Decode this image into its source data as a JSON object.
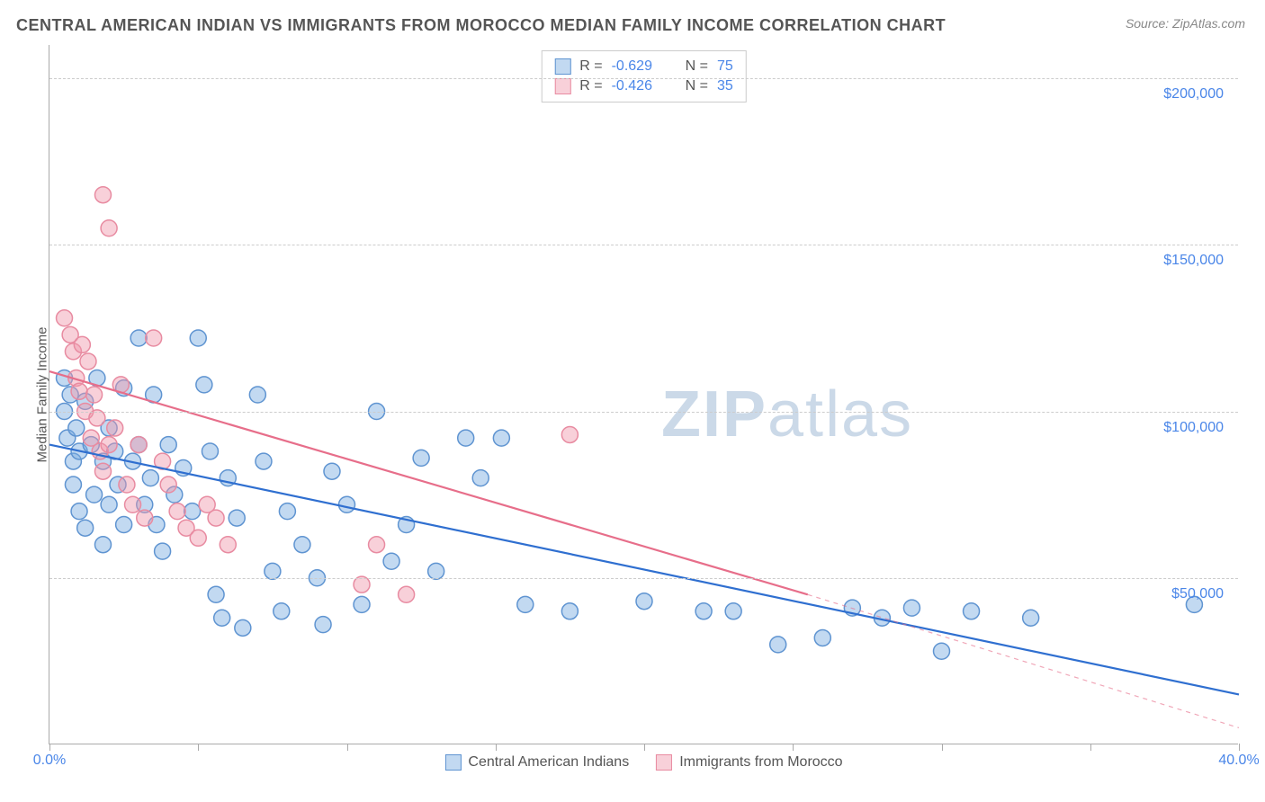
{
  "title": "CENTRAL AMERICAN INDIAN VS IMMIGRANTS FROM MOROCCO MEDIAN FAMILY INCOME CORRELATION CHART",
  "source": "Source: ZipAtlas.com",
  "ylabel": "Median Family Income",
  "watermark_bold": "ZIP",
  "watermark_light": "atlas",
  "chart": {
    "type": "scatter-correlation",
    "background_color": "#ffffff",
    "grid_color": "#cccccc",
    "axis_color": "#aaaaaa",
    "tick_label_color": "#4a86e8",
    "label_color": "#555555",
    "title_color": "#555555",
    "title_fontsize": 18,
    "label_fontsize": 15,
    "tick_label_fontsize": 16,
    "xlim": [
      0,
      40
    ],
    "ylim": [
      0,
      210000
    ],
    "x_ticks": [
      0,
      5,
      10,
      15,
      20,
      25,
      30,
      35,
      40
    ],
    "x_tick_labels": {
      "0": "0.0%",
      "40": "40.0%"
    },
    "y_gridlines": [
      50000,
      100000,
      150000,
      200000
    ],
    "y_tick_labels": {
      "50000": "$50,000",
      "100000": "$100,000",
      "150000": "$150,000",
      "200000": "$200,000"
    },
    "marker_radius": 9,
    "marker_stroke_width": 1.5,
    "line_width": 2.2,
    "series": [
      {
        "id": "series-a",
        "label": "Central American Indians",
        "R": "-0.629",
        "N": "75",
        "fill_color": "rgba(120,170,225,0.45)",
        "stroke_color": "#5f94d1",
        "line_color": "#2f6fd0",
        "regression_solid": {
          "x1": 0,
          "y1": 90000,
          "x2": 40,
          "y2": 15000
        },
        "regression_dashed": null,
        "points": [
          [
            0.5,
            110000
          ],
          [
            0.5,
            100000
          ],
          [
            0.6,
            92000
          ],
          [
            0.7,
            105000
          ],
          [
            0.8,
            85000
          ],
          [
            0.8,
            78000
          ],
          [
            0.9,
            95000
          ],
          [
            1.0,
            88000
          ],
          [
            1.0,
            70000
          ],
          [
            1.2,
            103000
          ],
          [
            1.2,
            65000
          ],
          [
            1.4,
            90000
          ],
          [
            1.5,
            75000
          ],
          [
            1.6,
            110000
          ],
          [
            1.8,
            85000
          ],
          [
            1.8,
            60000
          ],
          [
            2.0,
            95000
          ],
          [
            2.0,
            72000
          ],
          [
            2.2,
            88000
          ],
          [
            2.3,
            78000
          ],
          [
            2.5,
            107000
          ],
          [
            2.5,
            66000
          ],
          [
            2.8,
            85000
          ],
          [
            3.0,
            122000
          ],
          [
            3.0,
            90000
          ],
          [
            3.2,
            72000
          ],
          [
            3.4,
            80000
          ],
          [
            3.5,
            105000
          ],
          [
            3.6,
            66000
          ],
          [
            3.8,
            58000
          ],
          [
            4.0,
            90000
          ],
          [
            4.2,
            75000
          ],
          [
            4.5,
            83000
          ],
          [
            4.8,
            70000
          ],
          [
            5.0,
            122000
          ],
          [
            5.2,
            108000
          ],
          [
            5.4,
            88000
          ],
          [
            5.6,
            45000
          ],
          [
            5.8,
            38000
          ],
          [
            6.0,
            80000
          ],
          [
            6.3,
            68000
          ],
          [
            6.5,
            35000
          ],
          [
            7.0,
            105000
          ],
          [
            7.2,
            85000
          ],
          [
            7.5,
            52000
          ],
          [
            7.8,
            40000
          ],
          [
            8.0,
            70000
          ],
          [
            8.5,
            60000
          ],
          [
            9.0,
            50000
          ],
          [
            9.2,
            36000
          ],
          [
            9.5,
            82000
          ],
          [
            10.0,
            72000
          ],
          [
            10.5,
            42000
          ],
          [
            11.0,
            100000
          ],
          [
            11.5,
            55000
          ],
          [
            12.0,
            66000
          ],
          [
            12.5,
            86000
          ],
          [
            13.0,
            52000
          ],
          [
            14.0,
            92000
          ],
          [
            14.5,
            80000
          ],
          [
            15.2,
            92000
          ],
          [
            16.0,
            42000
          ],
          [
            17.5,
            40000
          ],
          [
            20.0,
            43000
          ],
          [
            22.0,
            40000
          ],
          [
            24.5,
            30000
          ],
          [
            26.0,
            32000
          ],
          [
            27.0,
            41000
          ],
          [
            28.0,
            38000
          ],
          [
            29.0,
            41000
          ],
          [
            30.0,
            28000
          ],
          [
            31.0,
            40000
          ],
          [
            33.0,
            38000
          ],
          [
            38.5,
            42000
          ],
          [
            23.0,
            40000
          ]
        ]
      },
      {
        "id": "series-b",
        "label": "Immigrants from Morocco",
        "R": "-0.426",
        "N": "35",
        "fill_color": "rgba(240,150,170,0.45)",
        "stroke_color": "#e88ba1",
        "line_color": "#e76e8a",
        "regression_solid": {
          "x1": 0,
          "y1": 112000,
          "x2": 25.5,
          "y2": 45000
        },
        "regression_dashed": {
          "x1": 25.5,
          "y1": 45000,
          "x2": 40,
          "y2": 5000
        },
        "points": [
          [
            0.5,
            128000
          ],
          [
            0.7,
            123000
          ],
          [
            0.8,
            118000
          ],
          [
            0.9,
            110000
          ],
          [
            1.0,
            106000
          ],
          [
            1.1,
            120000
          ],
          [
            1.2,
            100000
          ],
          [
            1.3,
            115000
          ],
          [
            1.4,
            92000
          ],
          [
            1.5,
            105000
          ],
          [
            1.6,
            98000
          ],
          [
            1.7,
            88000
          ],
          [
            1.8,
            165000
          ],
          [
            1.8,
            82000
          ],
          [
            2.0,
            155000
          ],
          [
            2.0,
            90000
          ],
          [
            2.2,
            95000
          ],
          [
            2.4,
            108000
          ],
          [
            2.6,
            78000
          ],
          [
            2.8,
            72000
          ],
          [
            3.0,
            90000
          ],
          [
            3.2,
            68000
          ],
          [
            3.5,
            122000
          ],
          [
            3.8,
            85000
          ],
          [
            4.0,
            78000
          ],
          [
            4.3,
            70000
          ],
          [
            4.6,
            65000
          ],
          [
            5.0,
            62000
          ],
          [
            5.3,
            72000
          ],
          [
            5.6,
            68000
          ],
          [
            6.0,
            60000
          ],
          [
            10.5,
            48000
          ],
          [
            11.0,
            60000
          ],
          [
            12.0,
            45000
          ],
          [
            17.5,
            93000
          ]
        ]
      }
    ]
  },
  "legend_bottom": [
    {
      "swatch": "a",
      "label": "Central American Indians"
    },
    {
      "swatch": "b",
      "label": "Immigrants from Morocco"
    }
  ]
}
